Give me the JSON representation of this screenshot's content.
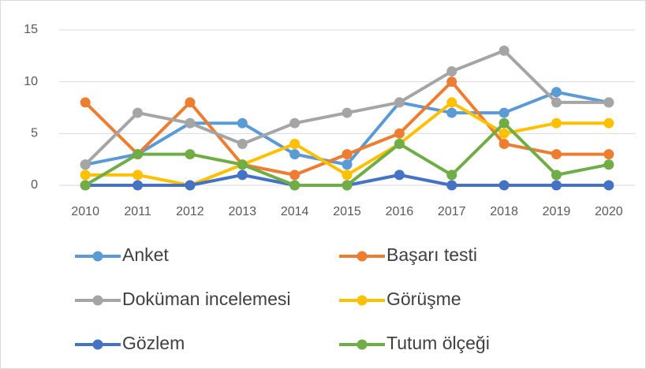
{
  "chart_data": {
    "type": "line",
    "x": [
      2010,
      2011,
      2012,
      2013,
      2014,
      2015,
      2016,
      2017,
      2018,
      2019,
      2020
    ],
    "series": [
      {
        "name": "Anket",
        "color": "#5b9bd5",
        "values": [
          2,
          3,
          6,
          6,
          3,
          2,
          8,
          7,
          7,
          9,
          8
        ]
      },
      {
        "name": "Başarı testi",
        "color": "#ed7d31",
        "values": [
          8,
          3,
          8,
          2,
          1,
          3,
          5,
          10,
          4,
          3,
          3
        ]
      },
      {
        "name": "Doküman incelemesi",
        "color": "#a5a5a5",
        "values": [
          2,
          7,
          6,
          4,
          6,
          7,
          8,
          11,
          13,
          8,
          8
        ]
      },
      {
        "name": "Görüşme",
        "color": "#ffc000",
        "values": [
          1,
          1,
          0,
          2,
          4,
          1,
          4,
          8,
          5,
          6,
          6
        ]
      },
      {
        "name": "Gözlem",
        "color": "#4472c4",
        "values": [
          0,
          0,
          0,
          1,
          0,
          0,
          1,
          0,
          0,
          0,
          0
        ]
      },
      {
        "name": "Tutum ölçeği",
        "color": "#70ad47",
        "values": [
          0,
          3,
          3,
          2,
          0,
          0,
          4,
          1,
          6,
          1,
          2
        ]
      }
    ],
    "ylim": [
      0,
      15
    ],
    "yticks": [
      0,
      5,
      10,
      15
    ],
    "grid": true,
    "legend": "bottom"
  }
}
